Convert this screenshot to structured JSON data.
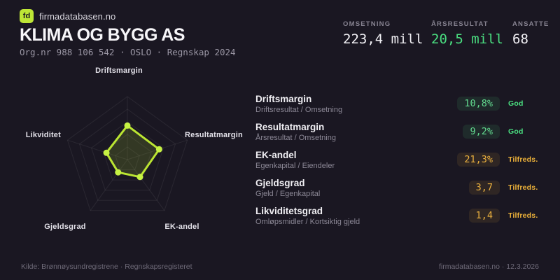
{
  "brand": {
    "logo_text": "fd",
    "name": "firmadatabasen.no"
  },
  "header": {
    "company": "KLIMA OG BYGG AS",
    "subtitle": "Org.nr 988 106 542 · OSLO · Regnskap 2024"
  },
  "stats": [
    {
      "label": "OMSETNING",
      "value": "223,4 mill",
      "tone": "plain"
    },
    {
      "label": "ÅRSRESULTAT",
      "value": "20,5 mill",
      "tone": "green"
    },
    {
      "label": "ANSATTE",
      "value": "68",
      "tone": "plain"
    }
  ],
  "chart_data": {
    "type": "radar",
    "axes": [
      "Driftsmargin",
      "Resultatmargin",
      "EK-andel",
      "Gjeldsgrad",
      "Likviditet"
    ],
    "normalized_values": [
      0.54,
      0.53,
      0.34,
      0.25,
      0.35
    ],
    "axis_metric_values": [
      "10,8%",
      "9,2%",
      "21,3%",
      "3,7",
      "1,4"
    ],
    "grid_rings": [
      0.2,
      0.4,
      0.6,
      0.8,
      1.0
    ],
    "stroke_color": "#bbe532",
    "dot_color": "#c6f243",
    "fill_color": "rgba(187,229,50,0.16)",
    "grid_color": "rgba(255,255,255,0.07)",
    "legend_position": "none",
    "value_range": [
      0,
      1
    ]
  },
  "metrics": [
    {
      "title": "Driftsmargin",
      "formula": "Driftsresultat / Omsetning",
      "value": "10,8%",
      "rating": "God",
      "tone": "green"
    },
    {
      "title": "Resultatmargin",
      "formula": "Årsresultat / Omsetning",
      "value": "9,2%",
      "rating": "God",
      "tone": "green"
    },
    {
      "title": "EK-andel",
      "formula": "Egenkapital / Eiendeler",
      "value": "21,3%",
      "rating": "Tilfreds.",
      "tone": "amber"
    },
    {
      "title": "Gjeldsgrad",
      "formula": "Gjeld / Egenkapital",
      "value": "3,7",
      "rating": "Tilfreds.",
      "tone": "amber"
    },
    {
      "title": "Likviditetsgrad",
      "formula": "Omløpsmidler / Kortsiktig gjeld",
      "value": "1,4",
      "rating": "Tilfreds.",
      "tone": "amber"
    }
  ],
  "footer": {
    "left": "Kilde: Brønnøysundregistrene · Regnskapsregisteret",
    "right": "firmadatabasen.no · 12.3.2026"
  },
  "colors": {
    "background": "#1a1722",
    "lime": "#bee636",
    "green": "#4ade80",
    "amber": "#f0b43a",
    "text_primary": "#f4f3f6",
    "text_muted": "#8b8795"
  }
}
